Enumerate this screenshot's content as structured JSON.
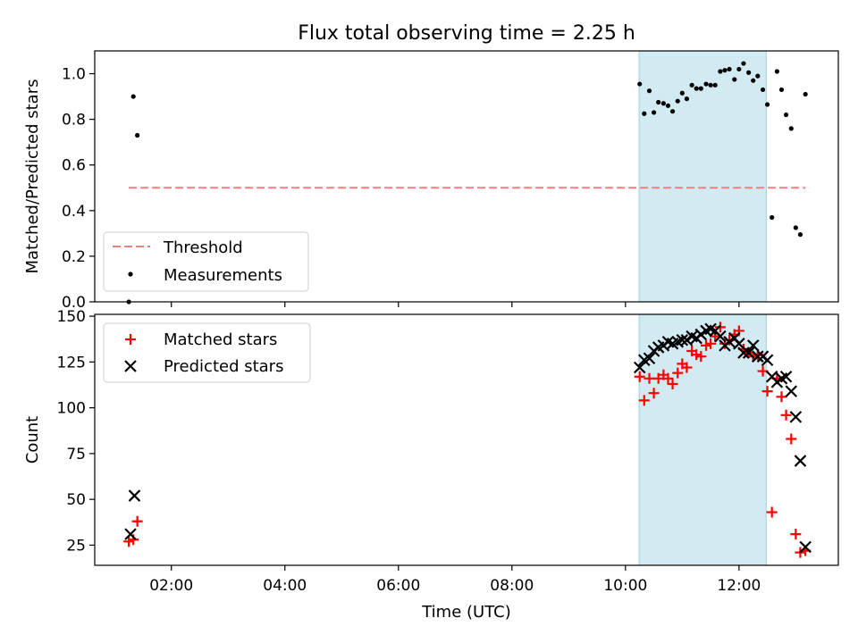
{
  "title": "Flux total observing time = 2.25 h",
  "chart_data": [
    {
      "type": "scatter",
      "ylabel": "Matched/Predicted stars",
      "xlabel": "",
      "xlim_hours": [
        0.65,
        13.75
      ],
      "ylim": [
        0,
        1.1
      ],
      "yticks": [
        0.0,
        0.2,
        0.4,
        0.6,
        0.8,
        1.0
      ],
      "ytick_labels": [
        "0.0",
        "0.2",
        "0.4",
        "0.6",
        "0.8",
        "1.0"
      ],
      "shaded_span_hours": [
        10.24,
        12.48
      ],
      "shade_color": "#add8e6",
      "legend_position": "lower-left",
      "threshold": {
        "name": "Threshold",
        "value": 0.5,
        "x_range_hours": [
          1.25,
          13.17
        ],
        "color": "#f08080",
        "style": "dashed"
      },
      "series": [
        {
          "name": "Measurements",
          "marker": "dot",
          "color": "#000000",
          "x_hours": [
            1.25,
            1.33,
            1.4,
            10.25,
            10.33,
            10.42,
            10.5,
            10.58,
            10.67,
            10.75,
            10.83,
            10.92,
            11.0,
            11.08,
            11.17,
            11.25,
            11.33,
            11.42,
            11.5,
            11.58,
            11.67,
            11.75,
            11.83,
            11.92,
            12.0,
            12.08,
            12.17,
            12.25,
            12.33,
            12.42,
            12.5,
            12.58,
            12.67,
            12.75,
            12.83,
            12.92,
            13.0,
            13.08,
            13.17
          ],
          "values": [
            0.0,
            0.9,
            0.73,
            0.955,
            0.825,
            0.925,
            0.83,
            0.875,
            0.87,
            0.86,
            0.835,
            0.88,
            0.915,
            0.89,
            0.95,
            0.935,
            0.935,
            0.955,
            0.95,
            0.95,
            1.01,
            1.015,
            1.02,
            0.975,
            1.02,
            1.045,
            1.005,
            0.97,
            0.99,
            0.93,
            0.865,
            0.37,
            1.01,
            0.93,
            0.82,
            0.76,
            0.325,
            0.295,
            0.91
          ]
        }
      ]
    },
    {
      "type": "scatter",
      "ylabel": "Count",
      "xlabel": "Time (UTC)",
      "xlim_hours": [
        0.65,
        13.75
      ],
      "ylim": [
        14,
        151
      ],
      "yticks": [
        25,
        50,
        75,
        100,
        125,
        150
      ],
      "ytick_labels": [
        "25",
        "50",
        "75",
        "100",
        "125",
        "150"
      ],
      "xticks_hours": [
        2,
        4,
        6,
        8,
        10,
        12
      ],
      "xtick_labels": [
        "02:00",
        "04:00",
        "06:00",
        "08:00",
        "10:00",
        "12:00"
      ],
      "shaded_span_hours": [
        10.24,
        12.48
      ],
      "shade_color": "#add8e6",
      "legend_position": "upper-left",
      "series": [
        {
          "name": "Matched stars",
          "marker": "plus",
          "color": "#ff0000",
          "x_hours": [
            1.25,
            1.33,
            1.4,
            10.25,
            10.33,
            10.42,
            10.5,
            10.58,
            10.67,
            10.75,
            10.83,
            10.92,
            11.0,
            11.08,
            11.17,
            11.25,
            11.33,
            11.42,
            11.5,
            11.58,
            11.67,
            11.75,
            11.83,
            11.92,
            12.0,
            12.08,
            12.17,
            12.25,
            12.33,
            12.42,
            12.5,
            12.58,
            12.67,
            12.75,
            12.83,
            12.92,
            13.0,
            13.08,
            13.17
          ],
          "values": [
            27,
            28,
            38,
            117,
            104,
            116,
            108,
            116,
            118,
            116,
            113,
            119,
            124,
            122,
            131,
            129,
            128,
            134,
            135,
            139,
            144,
            135,
            137,
            140,
            142,
            132,
            130,
            128,
            129,
            120,
            109,
            43,
            116,
            106,
            96,
            83,
            31,
            21,
            22
          ]
        },
        {
          "name": "Predicted stars",
          "marker": "x",
          "color": "#000000",
          "x_hours": [
            1.28,
            1.35,
            10.25,
            10.33,
            10.42,
            10.5,
            10.58,
            10.67,
            10.75,
            10.83,
            10.92,
            11.0,
            11.08,
            11.17,
            11.25,
            11.33,
            11.42,
            11.5,
            11.58,
            11.67,
            11.75,
            11.83,
            11.92,
            12.0,
            12.08,
            12.17,
            12.25,
            12.33,
            12.42,
            12.5,
            12.58,
            12.67,
            12.75,
            12.83,
            12.92,
            13.0,
            13.08,
            13.17
          ],
          "values": [
            31,
            52,
            122,
            126,
            127,
            131,
            133,
            134,
            136,
            135,
            136,
            137,
            137,
            139,
            138,
            140,
            142,
            143,
            142,
            139,
            134,
            136,
            138,
            135,
            130,
            130,
            134,
            128,
            128,
            126,
            117,
            114,
            116,
            117,
            109,
            95,
            71,
            24
          ]
        }
      ]
    }
  ]
}
